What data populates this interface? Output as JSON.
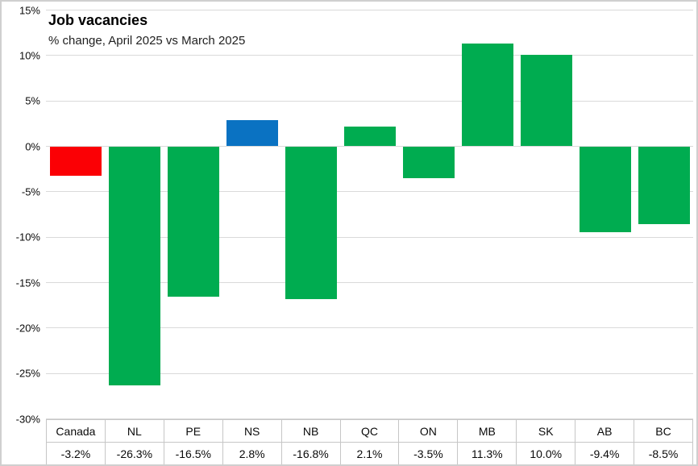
{
  "header": {
    "title": "Job vacancies",
    "subtitle": "% change, April 2025 vs March 2025"
  },
  "chart_data": {
    "type": "bar",
    "title": "Job vacancies",
    "subtitle": "% change, April 2025 vs March 2025",
    "categories": [
      "Canada",
      "NL",
      "PE",
      "NS",
      "NB",
      "QC",
      "ON",
      "MB",
      "SK",
      "AB",
      "BC"
    ],
    "values": [
      -3.2,
      -26.3,
      -16.5,
      2.8,
      -16.8,
      2.1,
      -3.5,
      11.3,
      10.0,
      -9.4,
      -8.5
    ],
    "value_labels": [
      "-3.2%",
      "-26.3%",
      "-16.5%",
      "2.8%",
      "-16.8%",
      "2.1%",
      "-3.5%",
      "11.3%",
      "10.0%",
      "-9.4%",
      "-8.5%"
    ],
    "ylim": [
      -30,
      15
    ],
    "ytick_values": [
      15,
      10,
      5,
      0,
      -5,
      -10,
      -15,
      -20,
      -25,
      -30
    ],
    "ytick_labels": [
      "15%",
      "10%",
      "5%",
      "0%",
      "-5%",
      "-10%",
      "-15%",
      "-20%",
      "-25%",
      "-30%"
    ],
    "grid": "horizontal-only",
    "legend": false,
    "data_table_shown": true,
    "bar_colors": {
      "default": "#00ac50",
      "Canada": "#fb0005",
      "NS": "#0a72c2"
    }
  },
  "style_colors": {
    "gridline": "#dadada",
    "outer_border": "#cfcfcf",
    "table_border": "#c6c6c6",
    "text": "#0a0a0a"
  }
}
